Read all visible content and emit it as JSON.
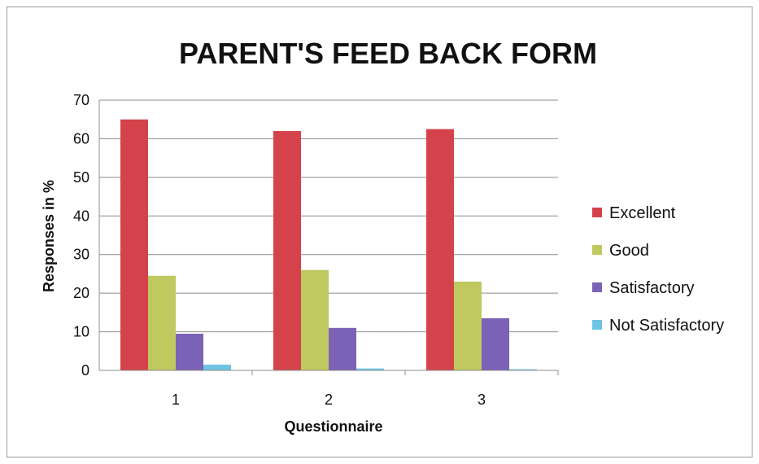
{
  "chart_data": {
    "type": "bar",
    "title": "PARENT'S FEED BACK FORM",
    "xlabel": "Questionnaire",
    "ylabel": "Responses in %",
    "categories": [
      "1",
      "2",
      "3"
    ],
    "ylim": [
      0,
      70
    ],
    "yticks": [
      0,
      10,
      20,
      30,
      40,
      50,
      60,
      70
    ],
    "grid": true,
    "legend_position": "right",
    "series": [
      {
        "name": "Excellent",
        "color": "#d4434b",
        "values": [
          65,
          62,
          62.5
        ]
      },
      {
        "name": "Good",
        "color": "#bfc95f",
        "values": [
          24.5,
          26,
          23
        ]
      },
      {
        "name": "Satisfactory",
        "color": "#7b62b6",
        "values": [
          9.5,
          11,
          13.5
        ]
      },
      {
        "name": "Not Satisfactory",
        "color": "#6ec4e4",
        "values": [
          1.5,
          0.5,
          0.3
        ]
      }
    ]
  }
}
